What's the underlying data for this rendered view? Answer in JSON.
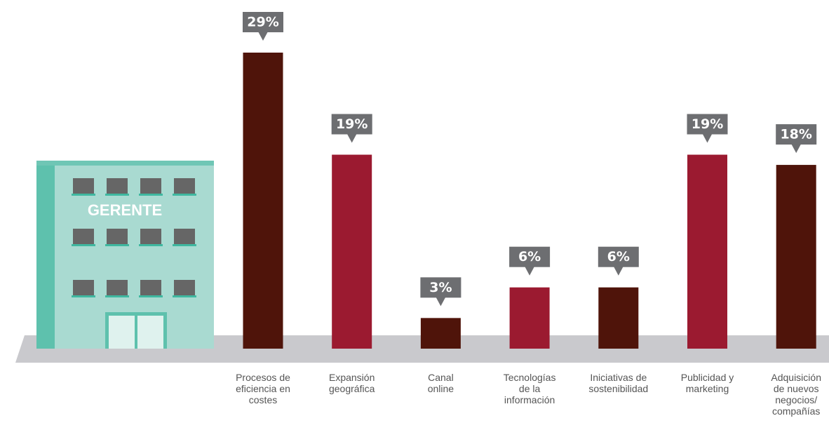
{
  "chart_data": {
    "type": "bar",
    "building_label": "GERENTE",
    "categories": [
      "Procesos de\neficiencia en\ncostes",
      "Expansión\ngeográfica",
      "Canal\nonline",
      "Tecnologías\nde la\ninformación",
      "Iniciativas de\nsostenibilidad",
      "Publicidad y\nmarketing",
      "Adquisición\nde nuevos\nnegocios/\ncompañías"
    ],
    "values": [
      29,
      19,
      3,
      6,
      6,
      19,
      18
    ],
    "value_labels": [
      "29%",
      "19%",
      "3%",
      "6%",
      "6%",
      "19%",
      "18%"
    ],
    "colors": [
      "#4f140a",
      "#9b1a30",
      "#4f140a",
      "#9b1a30",
      "#4f140a",
      "#9b1a30",
      "#4f140a"
    ]
  }
}
